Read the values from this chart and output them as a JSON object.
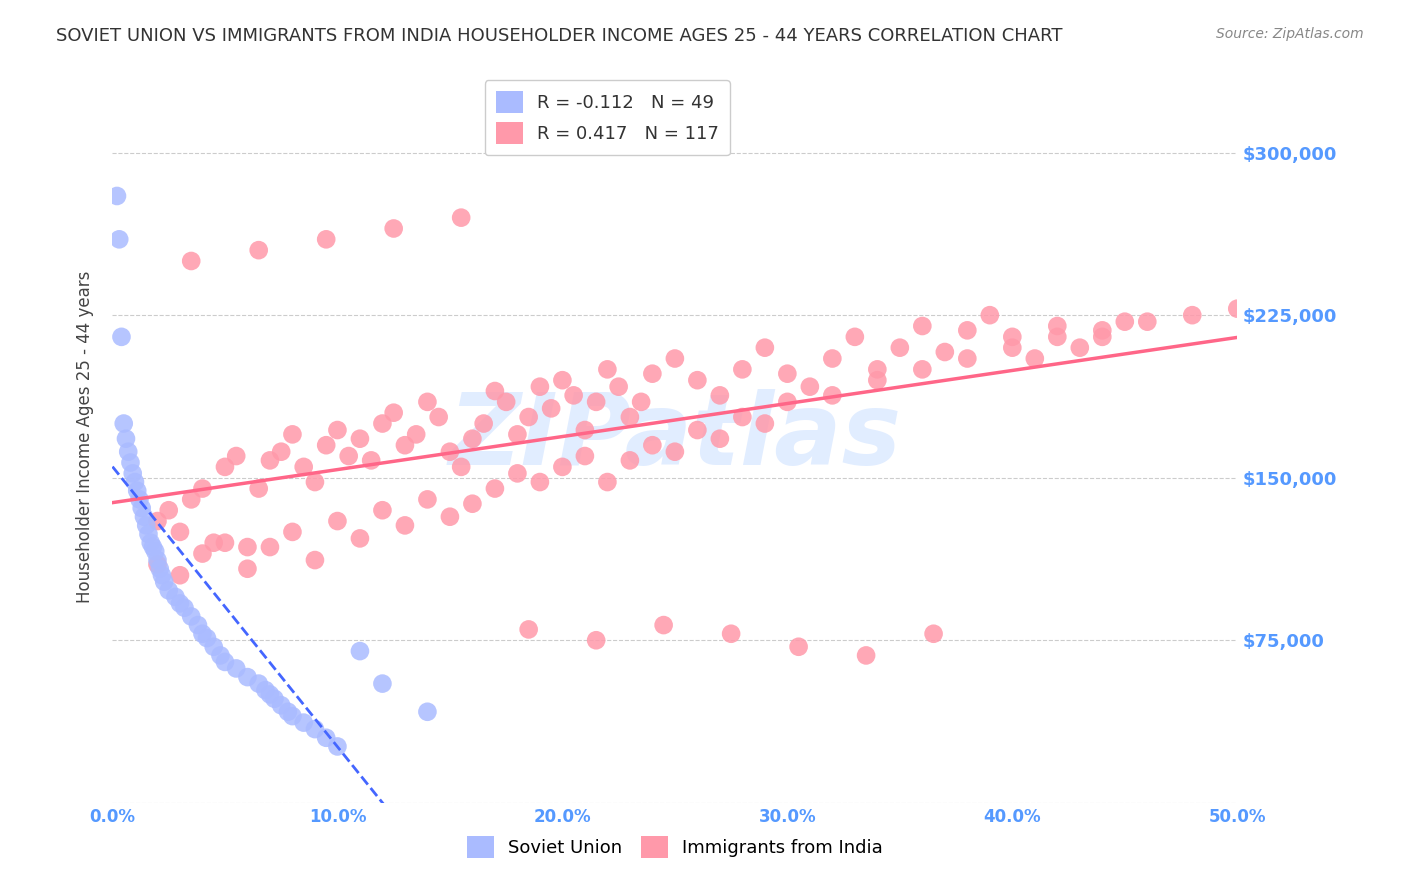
{
  "title": "SOVIET UNION VS IMMIGRANTS FROM INDIA HOUSEHOLDER INCOME AGES 25 - 44 YEARS CORRELATION CHART",
  "source": "Source: ZipAtlas.com",
  "xlabel": "",
  "ylabel": "Householder Income Ages 25 - 44 years",
  "xlim": [
    0.0,
    0.5
  ],
  "ylim": [
    0,
    337500
  ],
  "yticks": [
    0,
    75000,
    150000,
    225000,
    300000
  ],
  "ytick_labels": [
    "",
    "$75,000",
    "$150,000",
    "$225,000",
    "$300,000"
  ],
  "xticks": [
    0.0,
    0.1,
    0.2,
    0.3,
    0.4,
    0.5
  ],
  "xtick_labels": [
    "0.0%",
    "10.0%",
    "20.0%",
    "30.0%",
    "40.0%",
    "50.0%"
  ],
  "grid_color": "#cccccc",
  "background_color": "#ffffff",
  "title_color": "#333333",
  "axis_color": "#5599ff",
  "watermark": "ZIPatlas",
  "legend1_r": "-0.112",
  "legend1_n": "49",
  "legend2_r": "0.417",
  "legend2_n": "117",
  "soviet_color": "#aabbff",
  "india_color": "#ff99aa",
  "soviet_trend_color": "#4466ff",
  "india_trend_color": "#ff6688",
  "soviet_r": -0.112,
  "soviet_n": 49,
  "india_r": 0.417,
  "india_n": 117,
  "soviet_x": [
    0.002,
    0.003,
    0.004,
    0.005,
    0.006,
    0.007,
    0.008,
    0.009,
    0.01,
    0.011,
    0.012,
    0.013,
    0.014,
    0.015,
    0.016,
    0.017,
    0.018,
    0.019,
    0.02,
    0.021,
    0.022,
    0.023,
    0.025,
    0.028,
    0.03,
    0.032,
    0.035,
    0.038,
    0.04,
    0.042,
    0.045,
    0.048,
    0.05,
    0.055,
    0.06,
    0.065,
    0.068,
    0.07,
    0.072,
    0.075,
    0.078,
    0.08,
    0.085,
    0.09,
    0.095,
    0.1,
    0.11,
    0.12,
    0.14
  ],
  "soviet_y": [
    280000,
    260000,
    215000,
    175000,
    168000,
    162000,
    157000,
    152000,
    148000,
    144000,
    140000,
    136000,
    132000,
    128000,
    124000,
    120000,
    118000,
    116000,
    112000,
    108000,
    105000,
    102000,
    98000,
    95000,
    92000,
    90000,
    86000,
    82000,
    78000,
    76000,
    72000,
    68000,
    65000,
    62000,
    58000,
    55000,
    52000,
    50000,
    48000,
    45000,
    42000,
    40000,
    37000,
    34000,
    30000,
    26000,
    70000,
    55000,
    42000
  ],
  "india_x": [
    0.02,
    0.025,
    0.03,
    0.035,
    0.04,
    0.045,
    0.05,
    0.055,
    0.06,
    0.065,
    0.07,
    0.075,
    0.08,
    0.085,
    0.09,
    0.095,
    0.1,
    0.105,
    0.11,
    0.115,
    0.12,
    0.125,
    0.13,
    0.135,
    0.14,
    0.145,
    0.15,
    0.155,
    0.16,
    0.165,
    0.17,
    0.175,
    0.18,
    0.185,
    0.19,
    0.195,
    0.2,
    0.205,
    0.21,
    0.215,
    0.22,
    0.225,
    0.23,
    0.235,
    0.24,
    0.25,
    0.26,
    0.27,
    0.28,
    0.29,
    0.3,
    0.31,
    0.32,
    0.33,
    0.34,
    0.35,
    0.36,
    0.37,
    0.38,
    0.39,
    0.4,
    0.41,
    0.42,
    0.43,
    0.44,
    0.45,
    0.02,
    0.03,
    0.04,
    0.05,
    0.06,
    0.07,
    0.08,
    0.09,
    0.1,
    0.11,
    0.12,
    0.13,
    0.14,
    0.15,
    0.16,
    0.17,
    0.18,
    0.19,
    0.2,
    0.21,
    0.22,
    0.23,
    0.24,
    0.25,
    0.26,
    0.27,
    0.28,
    0.29,
    0.3,
    0.32,
    0.34,
    0.36,
    0.38,
    0.4,
    0.42,
    0.44,
    0.46,
    0.48,
    0.5,
    0.035,
    0.065,
    0.095,
    0.125,
    0.155,
    0.185,
    0.215,
    0.245,
    0.275,
    0.305,
    0.335,
    0.365
  ],
  "india_y": [
    130000,
    135000,
    125000,
    140000,
    145000,
    120000,
    155000,
    160000,
    118000,
    145000,
    158000,
    162000,
    170000,
    155000,
    148000,
    165000,
    172000,
    160000,
    168000,
    158000,
    175000,
    180000,
    165000,
    170000,
    185000,
    178000,
    162000,
    155000,
    168000,
    175000,
    190000,
    185000,
    170000,
    178000,
    192000,
    182000,
    195000,
    188000,
    172000,
    185000,
    200000,
    192000,
    178000,
    185000,
    198000,
    205000,
    195000,
    188000,
    200000,
    210000,
    198000,
    192000,
    205000,
    215000,
    200000,
    210000,
    220000,
    208000,
    218000,
    225000,
    215000,
    205000,
    220000,
    210000,
    215000,
    222000,
    110000,
    105000,
    115000,
    120000,
    108000,
    118000,
    125000,
    112000,
    130000,
    122000,
    135000,
    128000,
    140000,
    132000,
    138000,
    145000,
    152000,
    148000,
    155000,
    160000,
    148000,
    158000,
    165000,
    162000,
    172000,
    168000,
    178000,
    175000,
    185000,
    188000,
    195000,
    200000,
    205000,
    210000,
    215000,
    218000,
    222000,
    225000,
    228000,
    250000,
    255000,
    260000,
    265000,
    270000,
    80000,
    75000,
    82000,
    78000,
    72000,
    68000,
    78000
  ]
}
